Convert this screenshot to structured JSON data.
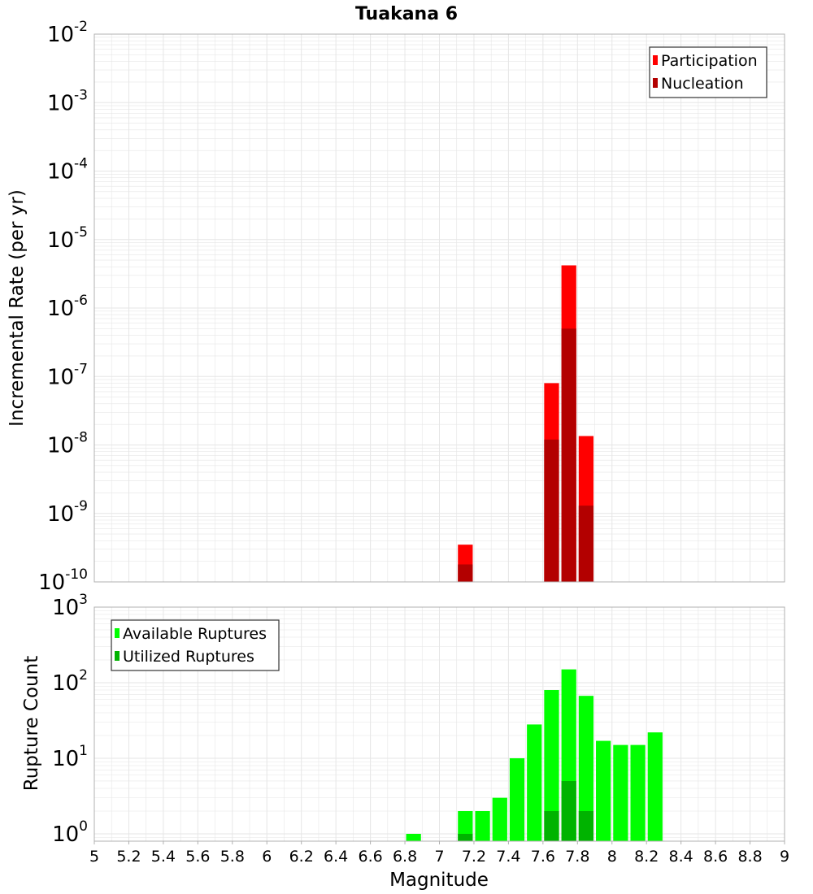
{
  "title": "Tuakana 6",
  "colors": {
    "participation": "#ff0000",
    "nucleation": "#b30000",
    "available": "#00ff00",
    "utilized": "#00b300",
    "gridline": "#e6e6e6",
    "frame": "#b0b0b0"
  },
  "chart_data": [
    {
      "type": "bar",
      "yscale": "log",
      "ylabel": "Incremental Rate (per yr)",
      "ylim": [
        1e-10,
        0.01
      ],
      "y_ticks": [
        {
          "base": "10",
          "exp": "-10"
        },
        {
          "base": "10",
          "exp": "-9"
        },
        {
          "base": "10",
          "exp": "-8"
        },
        {
          "base": "10",
          "exp": "-7"
        },
        {
          "base": "10",
          "exp": "-6"
        },
        {
          "base": "10",
          "exp": "-5"
        },
        {
          "base": "10",
          "exp": "-4"
        },
        {
          "base": "10",
          "exp": "-3"
        },
        {
          "base": "10",
          "exp": "-2"
        }
      ],
      "bin_width": 0.1,
      "legend_position": "top-right",
      "series": [
        {
          "name": "Participation",
          "color_key": "participation",
          "x": [
            7.15,
            7.65,
            7.75,
            7.85
          ],
          "values": [
            3.5e-10,
            8e-08,
            4.2e-06,
            1.35e-08
          ]
        },
        {
          "name": "Nucleation",
          "color_key": "nucleation",
          "x": [
            7.15,
            7.65,
            7.75,
            7.85
          ],
          "values": [
            1.8e-10,
            1.2e-08,
            5e-07,
            1.3e-09
          ]
        }
      ]
    },
    {
      "type": "bar",
      "yscale": "log",
      "ylabel": "Rupture Count",
      "xlabel": "Magnitude",
      "xlim": [
        5,
        9
      ],
      "ylim": [
        0.8,
        1000
      ],
      "y_ticks": [
        {
          "base": "10",
          "exp": "0",
          "value": 1
        },
        {
          "base": "10",
          "exp": "1",
          "value": 10
        },
        {
          "base": "10",
          "exp": "2",
          "value": 100
        },
        {
          "base": "10",
          "exp": "3",
          "value": 1000
        }
      ],
      "x_ticks": [
        "5",
        "5.2",
        "5.4",
        "5.6",
        "5.8",
        "6",
        "6.2",
        "6.4",
        "6.6",
        "6.8",
        "7",
        "7.2",
        "7.4",
        "7.6",
        "7.8",
        "8",
        "8.2",
        "8.4",
        "8.6",
        "8.8",
        "9"
      ],
      "bin_width": 0.1,
      "legend_position": "top-left",
      "series": [
        {
          "name": "Available Ruptures",
          "color_key": "available",
          "x": [
            6.85,
            7.15,
            7.25,
            7.35,
            7.45,
            7.55,
            7.65,
            7.75,
            7.85,
            7.95,
            8.05,
            8.15,
            8.25
          ],
          "values": [
            1,
            2,
            2,
            3,
            10,
            28,
            80,
            150,
            67,
            17,
            15,
            15,
            22
          ]
        },
        {
          "name": "Utilized Ruptures",
          "color_key": "utilized",
          "x": [
            7.15,
            7.65,
            7.75,
            7.85
          ],
          "values": [
            1,
            2,
            5,
            2
          ]
        }
      ]
    }
  ]
}
